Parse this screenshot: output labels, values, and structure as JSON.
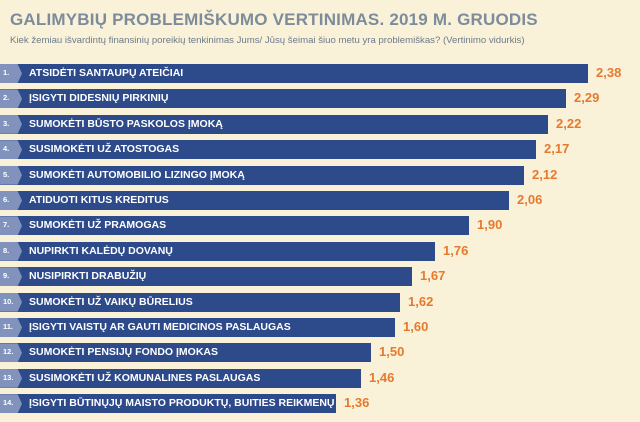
{
  "chart_data": {
    "type": "bar",
    "orientation": "horizontal",
    "title": "GALIMYBIŲ PROBLEMIŠKUMO VERTINIMAS. 2019 M. GRUODIS",
    "subtitle": "Kiek žemiau išvardintų finansinių poreikių tenkinimas Jums/ Jūsų šeimai šiuo metu yra problemiškas? (Vertinimo vidurkis)",
    "numbers": [
      "1.",
      "2.",
      "3.",
      "4.",
      "5.",
      "6.",
      "7.",
      "8.",
      "9.",
      "10.",
      "11.",
      "12.",
      "13.",
      "14."
    ],
    "categories": [
      "ATSIDĖTI SANTAUPŲ ATEIČIAI",
      "ĮSIGYTI DIDESNIŲ PIRKINIŲ",
      "SUMOKĖTI BŪSTO PASKOLOS ĮMOKĄ",
      "SUSIMOKĖTI UŽ ATOSTOGAS",
      "SUMOKĖTI AUTOMOBILIO LIZINGO ĮMOKĄ",
      "ATIDUOTI KITUS KREDITUS",
      "SUMOKĖTI UŽ PRAMOGAS",
      "NUPIRKTI KALĖDŲ DOVANŲ",
      "NUSIPIRKTI DRABUŽIŲ",
      "SUMOKĖTI UŽ VAIKŲ BŪRELIUS",
      "ĮSIGYTI VAISTŲ AR GAUTI MEDICINOS PASLAUGAS",
      "SUMOKĖTI PENSIJŲ FONDO ĮMOKAS",
      "SUSIMOKĖTI UŽ KOMUNALINES PASLAUGAS",
      "ĮSIGYTI BŪTINŲJŲ MAISTO PRODUKTŲ, BUITIES REIKMENŲ"
    ],
    "values": [
      2.38,
      2.29,
      2.22,
      2.17,
      2.12,
      2.06,
      1.9,
      1.76,
      1.67,
      1.62,
      1.6,
      1.5,
      1.46,
      1.36
    ],
    "value_labels": [
      "2,38",
      "2,29",
      "2,22",
      "2,17",
      "2,12",
      "2,06",
      "1,90",
      "1,76",
      "1,67",
      "1,62",
      "1,60",
      "1,50",
      "1,46",
      "1,36"
    ],
    "xlim": [
      0,
      2.4
    ],
    "grid": false,
    "colors": {
      "bar": "#2d4a8b",
      "tab": "#8193bd",
      "value": "#e57a2f",
      "title": "#7d8c9c",
      "background": "#f9f1d8"
    }
  }
}
